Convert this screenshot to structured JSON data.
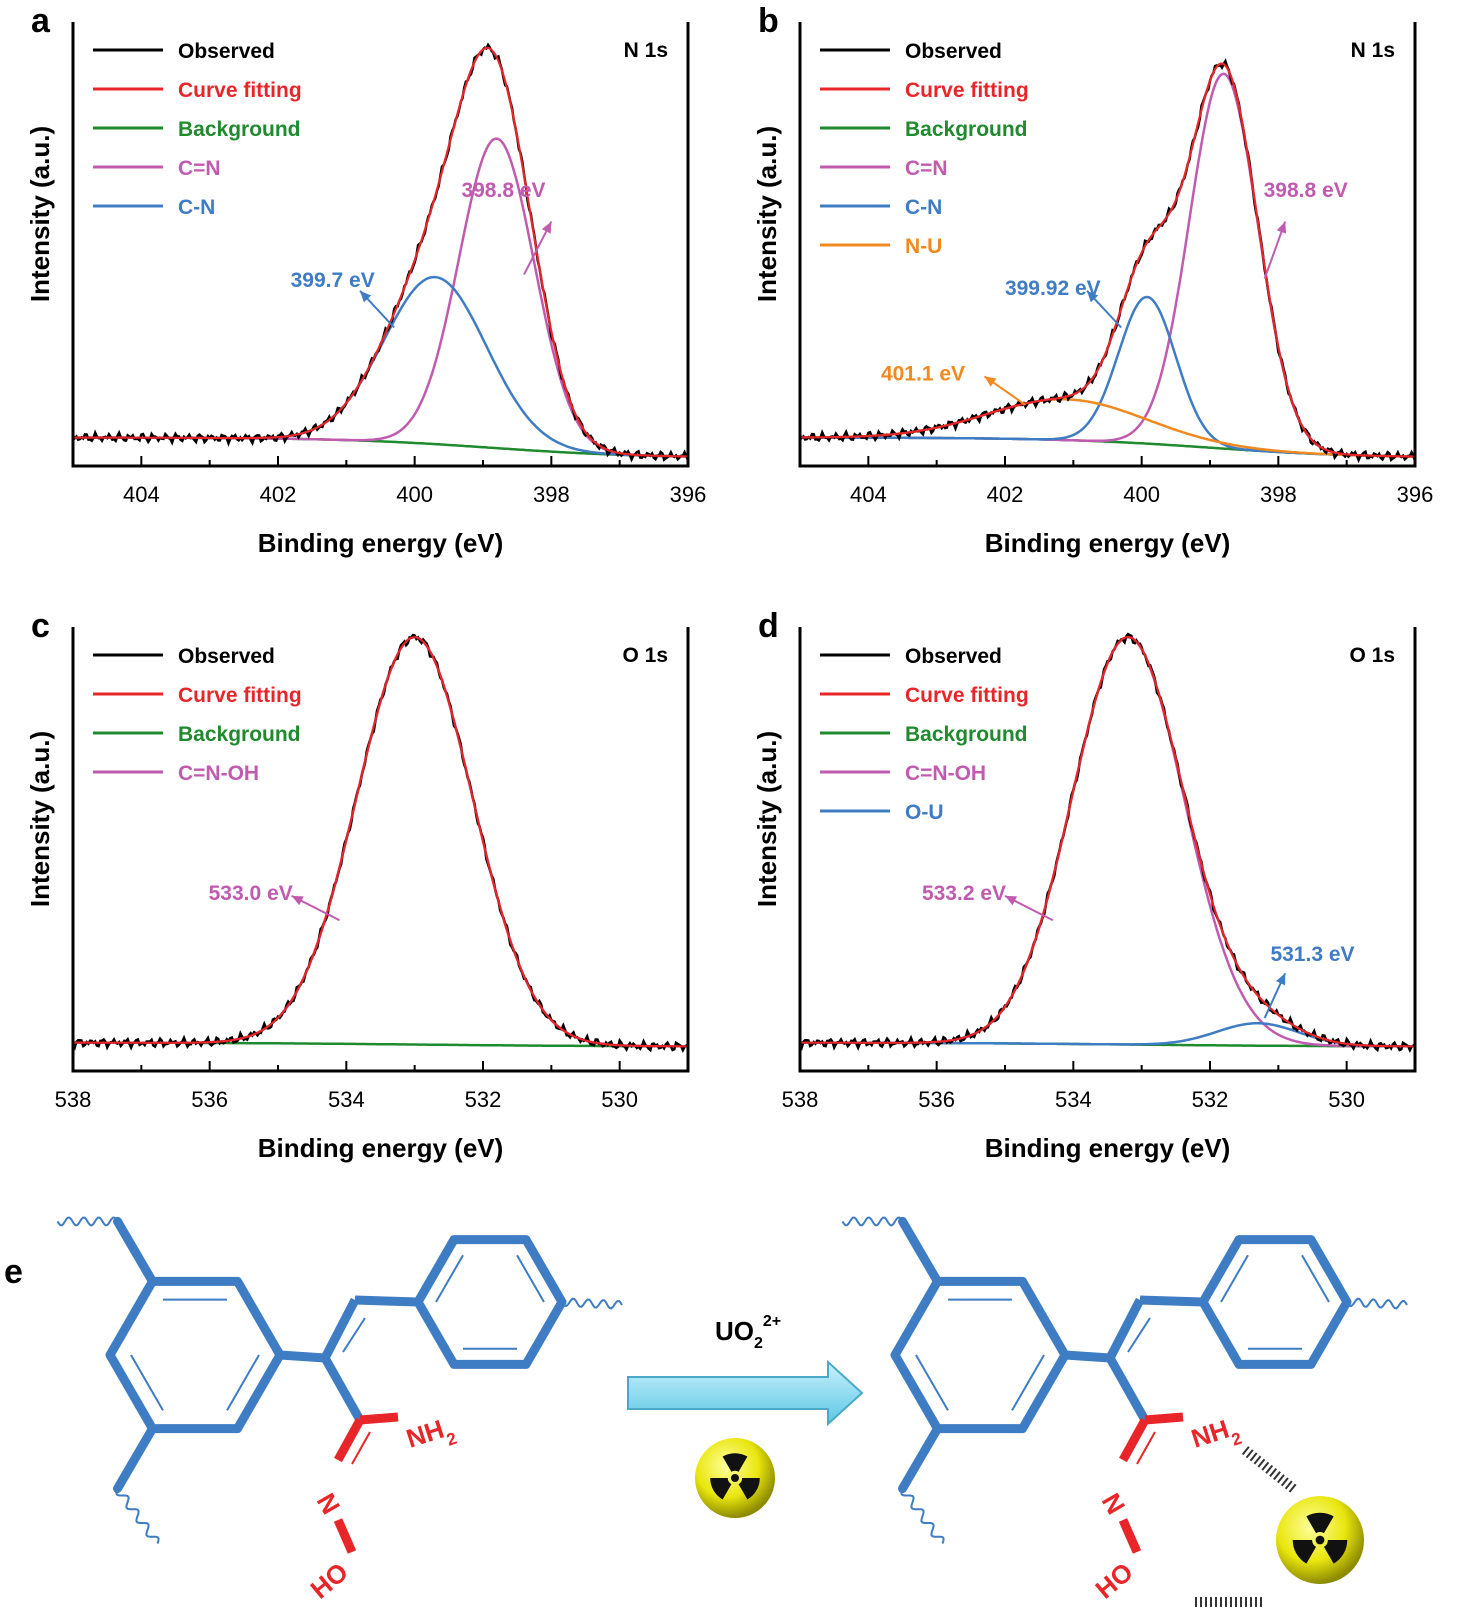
{
  "colors": {
    "observed": "#000000",
    "fitting": "#e8262a",
    "background": "#1f8a2e",
    "cn_double": "#c05bb0",
    "cn_single": "#3e7cc4",
    "nu": "#f0891f",
    "ou": "#3e7cc4",
    "molecule": "#3e7cc4",
    "amidoxime": "#e8262a"
  },
  "chart_data": [
    {
      "id": "a",
      "panel_label": "a",
      "type": "line",
      "title": "N 1s",
      "xlabel": "Binding energy (eV)",
      "ylabel": "Intensity (a.u.)",
      "xlim": [
        405,
        396
      ],
      "ylim": [
        -0.07,
        1.02
      ],
      "xticks": [
        404,
        402,
        400,
        398,
        396
      ],
      "baseline": {
        "left": 0.0,
        "right": -0.05,
        "center": 398.9,
        "width": 1.1
      },
      "components": [
        {
          "key": "cn_double",
          "name": "C=N",
          "center": 398.8,
          "height": 0.76,
          "sigma": 0.55
        },
        {
          "key": "cn_single",
          "name": "C-N",
          "center": 399.7,
          "height": 0.41,
          "sigma": 0.75
        }
      ],
      "legend": [
        {
          "label": "Observed",
          "key": "observed"
        },
        {
          "label": "Curve fitting",
          "key": "fitting"
        },
        {
          "label": "Background",
          "key": "background"
        },
        {
          "label": "C=N",
          "key": "cn_double"
        },
        {
          "label": "C-N",
          "key": "cn_single"
        }
      ],
      "annotations": [
        {
          "text": "398.8 eV",
          "key": "cn_double",
          "text_x": 398.7,
          "text_y": 0.59,
          "from": [
            398.4,
            0.4
          ],
          "to": [
            398.0,
            0.53
          ]
        },
        {
          "text": "399.7 eV",
          "key": "cn_single",
          "text_x": 401.2,
          "text_y": 0.37,
          "from": [
            400.3,
            0.27
          ],
          "to": [
            400.8,
            0.36
          ]
        }
      ]
    },
    {
      "id": "b",
      "panel_label": "b",
      "type": "line",
      "title": "N 1s",
      "xlabel": "Binding energy (eV)",
      "ylabel": "Intensity (a.u.)",
      "xlim": [
        405,
        396
      ],
      "ylim": [
        -0.07,
        1.02
      ],
      "xticks": [
        404,
        402,
        400,
        398,
        396
      ],
      "baseline": {
        "left": 0.0,
        "right": -0.05,
        "center": 399.0,
        "width": 1.1
      },
      "components": [
        {
          "key": "cn_double",
          "name": "C=N",
          "center": 398.8,
          "height": 0.92,
          "sigma": 0.5
        },
        {
          "key": "cn_single",
          "name": "C-N",
          "center": 399.92,
          "height": 0.36,
          "sigma": 0.42
        },
        {
          "key": "nu",
          "name": "N-U",
          "center": 401.1,
          "height": 0.1,
          "sigma": 1.15
        }
      ],
      "legend": [
        {
          "label": "Observed",
          "key": "observed"
        },
        {
          "label": "Curve fitting",
          "key": "fitting"
        },
        {
          "label": "Background",
          "key": "background"
        },
        {
          "label": "C=N",
          "key": "cn_double"
        },
        {
          "label": "C-N",
          "key": "cn_single"
        },
        {
          "label": "N-U",
          "key": "nu"
        }
      ],
      "annotations": [
        {
          "text": "398.8 eV",
          "key": "cn_double",
          "text_x": 397.6,
          "text_y": 0.59,
          "from": [
            398.2,
            0.39
          ],
          "to": [
            397.9,
            0.53
          ]
        },
        {
          "text": "399.92 eV",
          "key": "cn_single",
          "text_x": 401.3,
          "text_y": 0.35,
          "from": [
            400.3,
            0.27
          ],
          "to": [
            400.8,
            0.36
          ]
        },
        {
          "text": "401.1 eV",
          "key": "nu",
          "text_x": 403.2,
          "text_y": 0.14,
          "from": [
            401.7,
            0.08
          ],
          "to": [
            402.3,
            0.15
          ]
        }
      ]
    },
    {
      "id": "c",
      "panel_label": "c",
      "type": "line",
      "title": "O 1s",
      "xlabel": "Binding energy (eV)",
      "ylabel": "Intensity (a.u.)",
      "xlim": [
        538,
        529
      ],
      "ylim": [
        -0.07,
        1.02
      ],
      "xticks": [
        538,
        536,
        534,
        532,
        530
      ],
      "baseline": {
        "left": 0.0,
        "right": -0.01,
        "center": 533.0,
        "width": 1.5
      },
      "components": [
        {
          "key": "cn_double",
          "name": "C=N-OH",
          "center": 533.0,
          "height": 1.0,
          "sigma": 0.85
        }
      ],
      "legend": [
        {
          "label": "Observed",
          "key": "observed"
        },
        {
          "label": "Curve fitting",
          "key": "fitting"
        },
        {
          "label": "Background",
          "key": "background"
        },
        {
          "label": "C=N-OH",
          "key": "cn_double"
        }
      ],
      "annotations": [
        {
          "text": "533.0 eV",
          "key": "cn_double",
          "text_x": 535.4,
          "text_y": 0.35,
          "from": [
            534.1,
            0.3
          ],
          "to": [
            534.8,
            0.36
          ]
        }
      ]
    },
    {
      "id": "d",
      "panel_label": "d",
      "type": "line",
      "title": "O 1s",
      "xlabel": "Binding energy (eV)",
      "ylabel": "Intensity (a.u.)",
      "xlim": [
        538,
        529
      ],
      "ylim": [
        -0.07,
        1.02
      ],
      "xticks": [
        538,
        536,
        534,
        532,
        530
      ],
      "baseline": {
        "left": 0.0,
        "right": -0.01,
        "center": 533.2,
        "width": 1.5
      },
      "components": [
        {
          "key": "cn_double",
          "name": "C=N-OH",
          "center": 533.2,
          "height": 1.0,
          "sigma": 0.82
        },
        {
          "key": "ou",
          "name": "O-U",
          "center": 531.3,
          "height": 0.055,
          "sigma": 0.6
        }
      ],
      "legend": [
        {
          "label": "Observed",
          "key": "observed"
        },
        {
          "label": "Curve fitting",
          "key": "fitting"
        },
        {
          "label": "Background",
          "key": "background"
        },
        {
          "label": "C=N-OH",
          "key": "cn_double"
        },
        {
          "label": "O-U",
          "key": "ou"
        }
      ],
      "annotations": [
        {
          "text": "533.2 eV",
          "key": "cn_double",
          "text_x": 535.6,
          "text_y": 0.35,
          "from": [
            534.3,
            0.3
          ],
          "to": [
            535.0,
            0.36
          ]
        },
        {
          "text": "531.3 eV",
          "key": "ou",
          "text_x": 530.5,
          "text_y": 0.2,
          "from": [
            531.2,
            0.06
          ],
          "to": [
            530.9,
            0.17
          ]
        }
      ]
    }
  ],
  "scheme": {
    "panel_label": "e",
    "reagent": "UO",
    "reagent_sub": "2",
    "reagent_sup": "2+",
    "amine": "NH",
    "amine_sub": "2",
    "nitrogen": "N",
    "hydroxyl": "HO"
  }
}
